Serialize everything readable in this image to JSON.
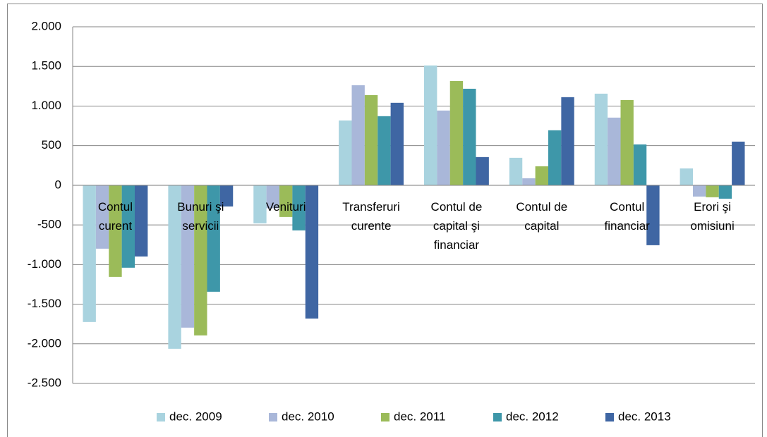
{
  "chart_data": {
    "type": "bar",
    "categories": [
      "Contul curent",
      "Bunuri şi servicii",
      "Venituri",
      "Transferuri curente",
      "Contul de capital şi financiar",
      "Contul de capital",
      "Contul financiar",
      "Erori şi omisiuni"
    ],
    "series": [
      {
        "name": "dec. 2009",
        "color": "#a9d3df",
        "values": [
          -1725,
          -2063,
          -480,
          818,
          1512,
          347,
          1156,
          213
        ]
      },
      {
        "name": "dec. 2010",
        "color": "#a9b7d9",
        "values": [
          -800,
          -1796,
          -290,
          1263,
          943,
          89,
          854,
          -142
        ]
      },
      {
        "name": "dec. 2011",
        "color": "#9bbb59",
        "values": [
          -1156,
          -1894,
          -400,
          1138,
          1316,
          240,
          1076,
          -151
        ]
      },
      {
        "name": "dec. 2012",
        "color": "#3e97a9",
        "values": [
          -1040,
          -1343,
          -569,
          872,
          1218,
          694,
          516,
          -169
        ]
      },
      {
        "name": "dec. 2013",
        "color": "#3f66a3",
        "values": [
          -898,
          -267,
          -1681,
          1041,
          356,
          1112,
          -756,
          551
        ]
      }
    ],
    "ylim": [
      -2500,
      2000
    ],
    "yticks": [
      {
        "value": -2500,
        "label": "-2.500"
      },
      {
        "value": -2000,
        "label": "-2.000"
      },
      {
        "value": -1500,
        "label": "-1.500"
      },
      {
        "value": -1000,
        "label": "-1.000"
      },
      -500,
      0,
      500,
      {
        "value": 1000,
        "label": "1.000"
      },
      {
        "value": 1500,
        "label": "1.500"
      },
      {
        "value": 2000,
        "label": "2.000"
      }
    ],
    "grid": true,
    "legend": "bottom"
  }
}
